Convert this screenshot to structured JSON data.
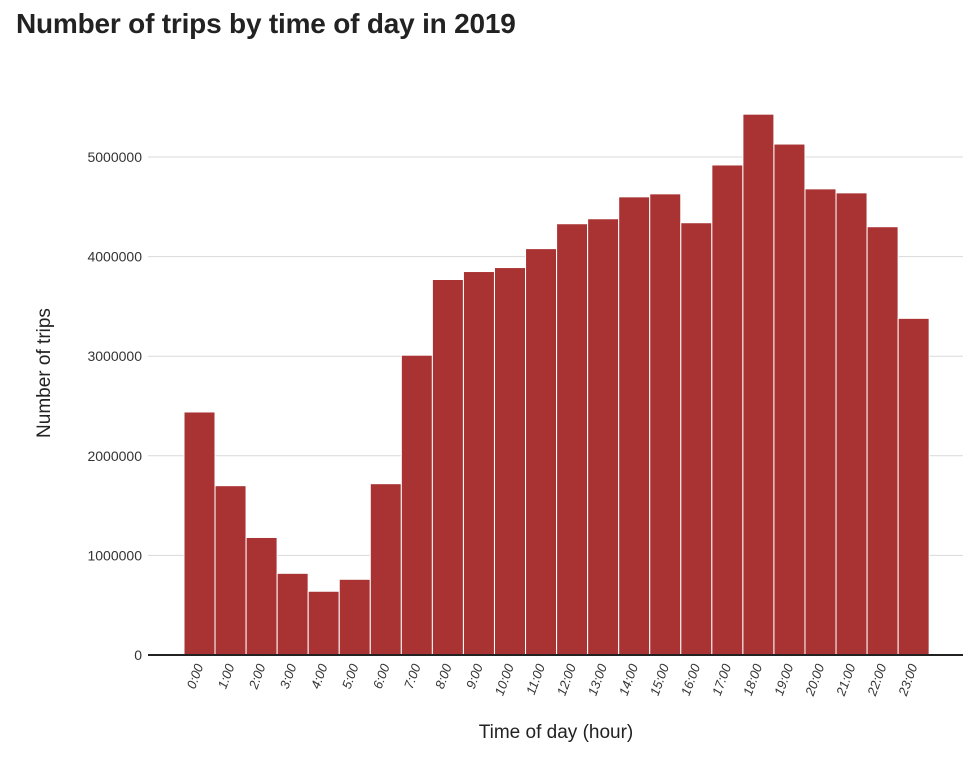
{
  "chart_data": {
    "type": "bar",
    "title": "Number of trips by time of day in 2019",
    "xlabel": "Time of day (hour)",
    "ylabel": "Number of trips",
    "categories": [
      "0:00",
      "1:00",
      "2:00",
      "3:00",
      "4:00",
      "5:00",
      "6:00",
      "7:00",
      "8:00",
      "9:00",
      "10:00",
      "11:00",
      "12:00",
      "13:00",
      "14:00",
      "15:00",
      "16:00",
      "17:00",
      "18:00",
      "19:00",
      "20:00",
      "21:00",
      "22:00",
      "23:00"
    ],
    "values": [
      2440000,
      1700000,
      1180000,
      820000,
      640000,
      760000,
      1720000,
      3010000,
      3770000,
      3850000,
      3890000,
      4080000,
      4330000,
      4380000,
      4600000,
      4630000,
      4340000,
      4920000,
      5430000,
      5130000,
      4680000,
      4640000,
      4300000,
      3380000
    ],
    "yticks": [
      "0",
      "1000000",
      "2000000",
      "3000000",
      "4000000",
      "5000000"
    ],
    "ylim": [
      0,
      5500000
    ],
    "grid": true,
    "bar_color": "#a93232"
  }
}
